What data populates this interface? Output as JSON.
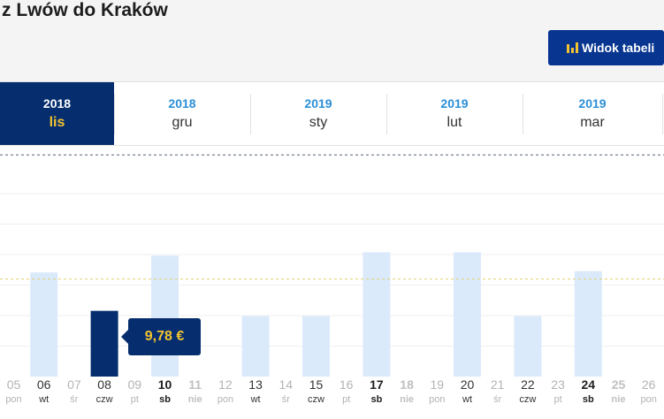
{
  "header": {
    "title": "z Lwów do Kraków",
    "table_view_label": "Widok tabeli",
    "table_view_icon": "bar-chart-icon",
    "accent_color": "#073590",
    "icon_color": "#f4c430"
  },
  "month_tabs": [
    {
      "year": "2018",
      "month": "lis",
      "active": true
    },
    {
      "year": "2018",
      "month": "gru",
      "active": false
    },
    {
      "year": "2019",
      "month": "sty",
      "active": false
    },
    {
      "year": "2019",
      "month": "lut",
      "active": false
    },
    {
      "year": "2019",
      "month": "mar",
      "active": false
    }
  ],
  "chart_data": {
    "type": "bar",
    "bar_color": "#dbeafb",
    "selected_color": "#062d6e",
    "selected_index": 3,
    "tooltip": "9,78 €",
    "days": [
      {
        "num": "05",
        "wd": "pon",
        "value": null,
        "style": "grey"
      },
      {
        "num": "06",
        "wd": "wt",
        "value": 15.5,
        "style": "dark"
      },
      {
        "num": "07",
        "wd": "śr",
        "value": null,
        "style": "grey"
      },
      {
        "num": "08",
        "wd": "czw",
        "value": 9.78,
        "style": "dark"
      },
      {
        "num": "09",
        "wd": "pt",
        "value": null,
        "style": "grey"
      },
      {
        "num": "10",
        "wd": "sb",
        "value": 18,
        "style": "bold"
      },
      {
        "num": "11",
        "wd": "nie",
        "value": null,
        "style": "bold-grey"
      },
      {
        "num": "12",
        "wd": "pon",
        "value": null,
        "style": "grey"
      },
      {
        "num": "13",
        "wd": "wt",
        "value": 9,
        "style": "dark"
      },
      {
        "num": "14",
        "wd": "śr",
        "value": null,
        "style": "grey"
      },
      {
        "num": "15",
        "wd": "czw",
        "value": 9,
        "style": "dark"
      },
      {
        "num": "16",
        "wd": "pt",
        "value": null,
        "style": "grey"
      },
      {
        "num": "17",
        "wd": "sb",
        "value": 18.5,
        "style": "bold"
      },
      {
        "num": "18",
        "wd": "nie",
        "value": null,
        "style": "bold-grey"
      },
      {
        "num": "19",
        "wd": "pon",
        "value": null,
        "style": "grey"
      },
      {
        "num": "20",
        "wd": "wt",
        "value": 18.5,
        "style": "dark"
      },
      {
        "num": "21",
        "wd": "śr",
        "value": null,
        "style": "grey"
      },
      {
        "num": "22",
        "wd": "czw",
        "value": 9,
        "style": "dark"
      },
      {
        "num": "23",
        "wd": "pt",
        "value": null,
        "style": "grey"
      },
      {
        "num": "24",
        "wd": "sb",
        "value": 15.7,
        "style": "bold"
      },
      {
        "num": "25",
        "wd": "nie",
        "value": null,
        "style": "bold-grey"
      },
      {
        "num": "26",
        "wd": "pon",
        "value": null,
        "style": "grey"
      }
    ],
    "ylim": [
      0,
      35
    ],
    "ref_lines": [
      {
        "value": 33,
        "color": "#555f75"
      },
      {
        "value": 14.5,
        "color": "#e0cf6a"
      }
    ]
  }
}
